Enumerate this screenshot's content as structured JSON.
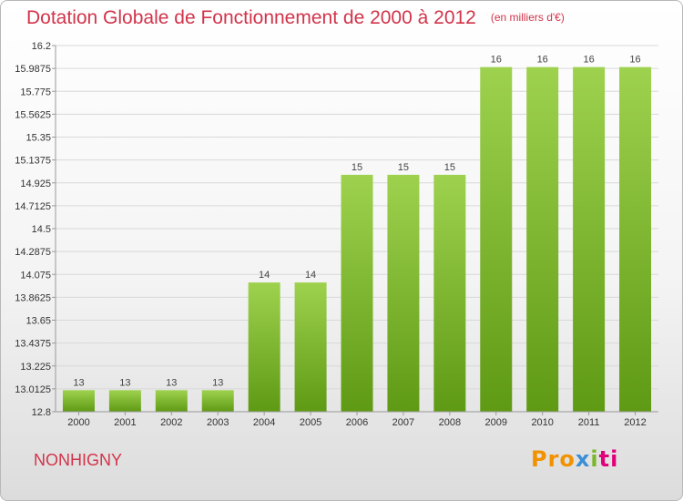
{
  "header": {
    "title": "Dotation Globale de Fonctionnement de 2000 à 2012",
    "unit": "(en milliers d'€)"
  },
  "footer": {
    "commune": "NONHIGNY",
    "logo": [
      "Pro",
      "x",
      "i",
      "ti"
    ]
  },
  "colors": {
    "title": "#d2334a",
    "bar_top": "#9ed24e",
    "bar_bottom": "#5f9a14",
    "grid": "#d8d8d8"
  },
  "chart_data": {
    "type": "bar",
    "categories": [
      "2000",
      "2001",
      "2002",
      "2003",
      "2004",
      "2005",
      "2006",
      "2007",
      "2008",
      "2009",
      "2010",
      "2011",
      "2012"
    ],
    "values": [
      13,
      13,
      13,
      13,
      14,
      14,
      15,
      15,
      15,
      16,
      16,
      16,
      16
    ],
    "data_labels": [
      "13",
      "13",
      "13",
      "13",
      "14",
      "14",
      "15",
      "15",
      "15",
      "16",
      "16",
      "16",
      "16"
    ],
    "plotted_values": [
      13.0,
      13.0,
      13.0,
      13.0,
      14.0,
      14.0,
      15.0,
      15.0,
      15.0,
      16.0,
      16.0,
      16.0,
      16.0
    ],
    "y_ticks": [
      "12.8",
      "13.0125",
      "13.225",
      "13.4375",
      "13.65",
      "13.8625",
      "14.075",
      "14.2875",
      "14.5",
      "14.7125",
      "14.925",
      "15.1375",
      "15.35",
      "15.5625",
      "15.775",
      "15.9875",
      "16.2"
    ],
    "ylim": [
      12.8,
      16.2
    ],
    "grid": true
  }
}
